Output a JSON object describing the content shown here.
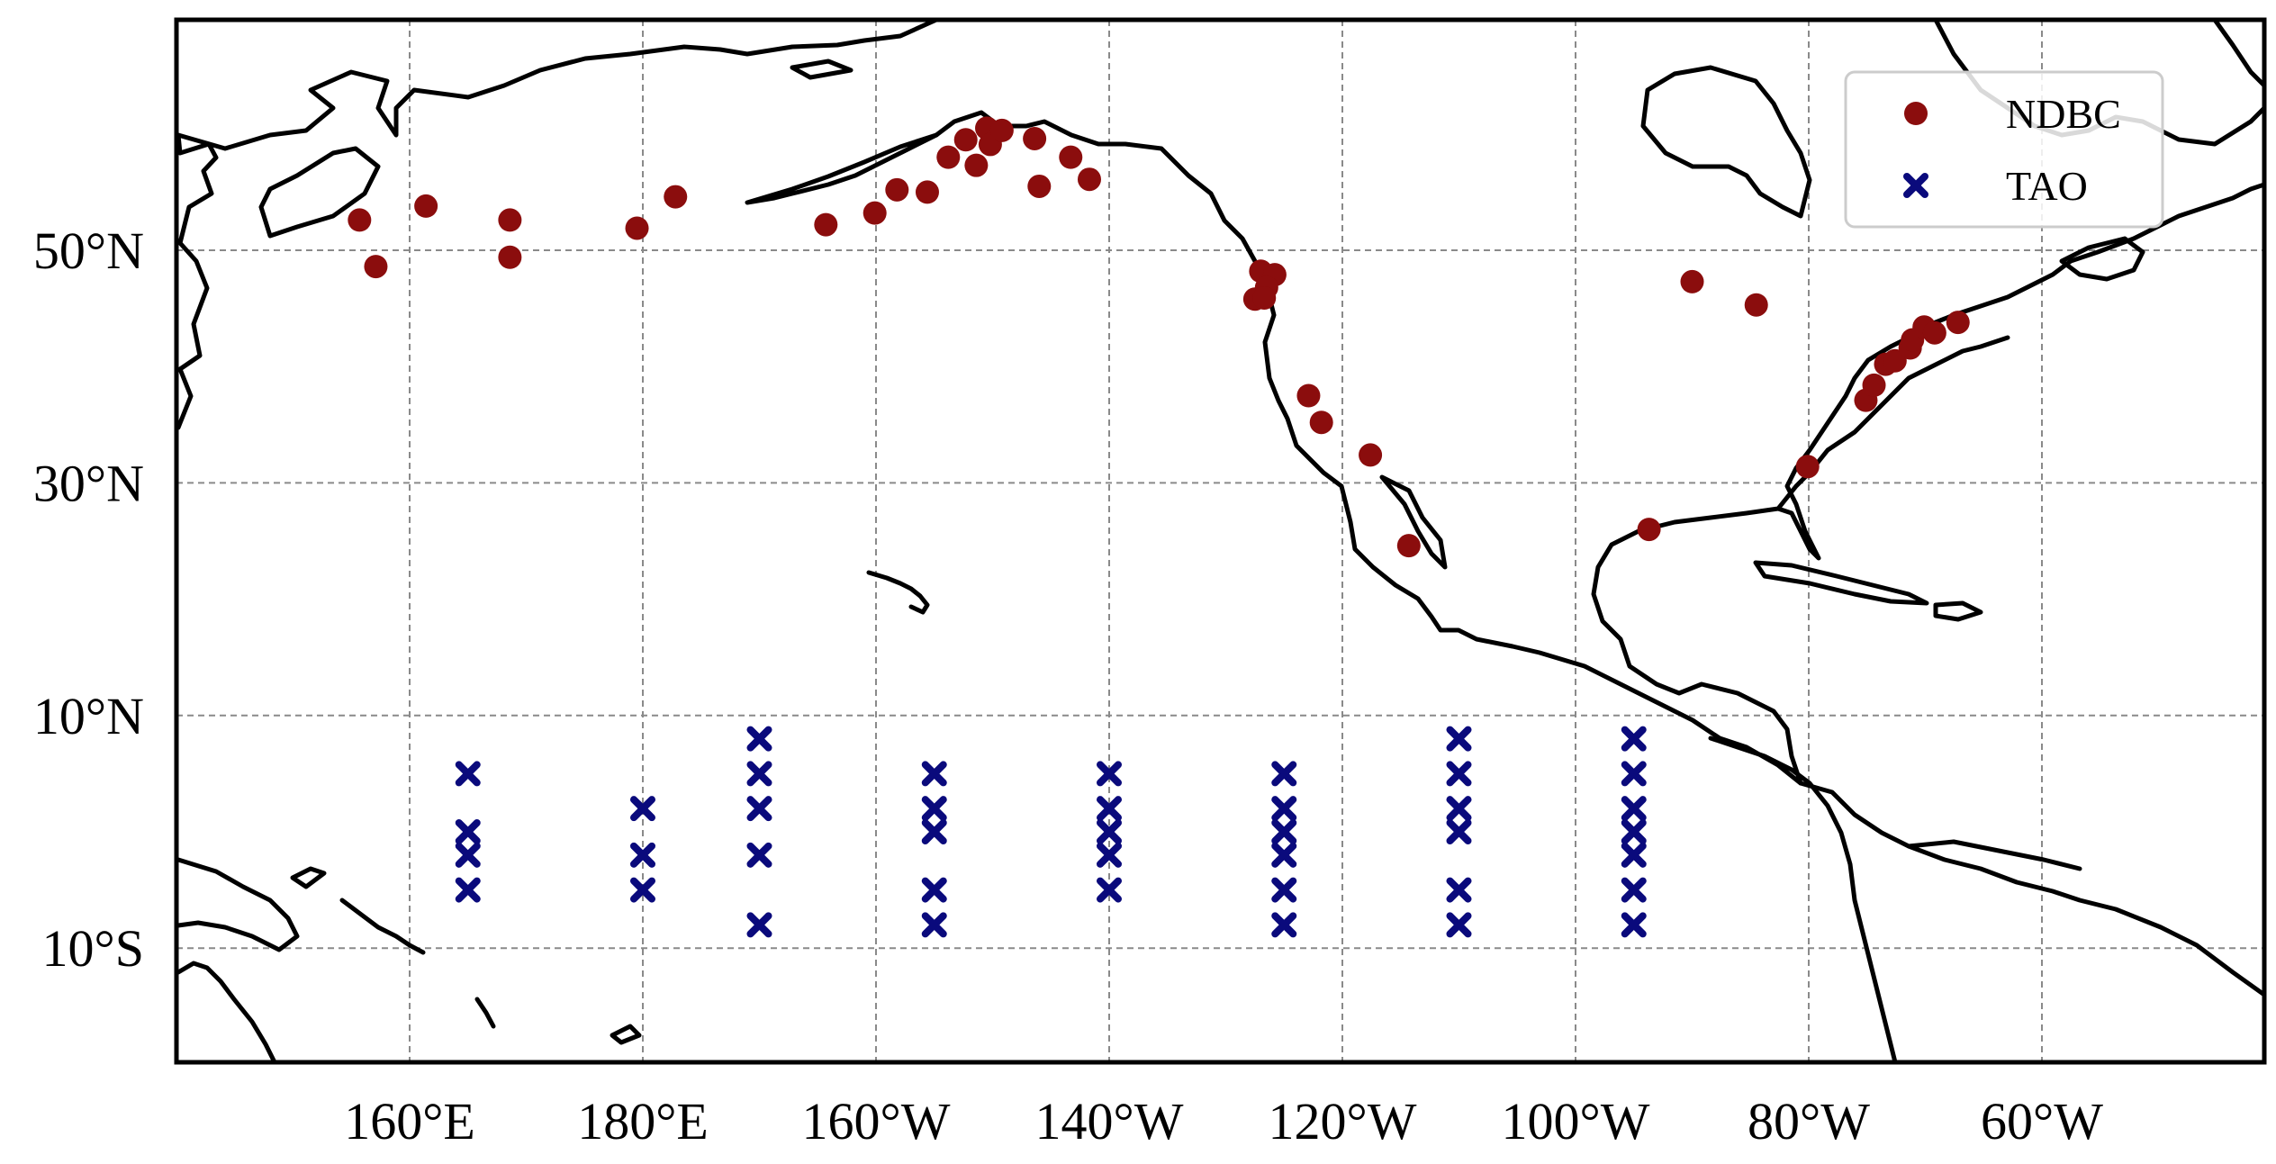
{
  "map": {
    "projection": "plate-carree",
    "lon_range": [
      140,
      300
    ],
    "lat_range": [
      -20,
      61
    ],
    "x_tick_labels": [
      {
        "lon": 160,
        "label": "160°E"
      },
      {
        "lon": 180,
        "label": "180°E"
      },
      {
        "lon": 200,
        "label": "160°W"
      },
      {
        "lon": 220,
        "label": "140°W"
      },
      {
        "lon": 240,
        "label": "120°W"
      },
      {
        "lon": 260,
        "label": "100°W"
      },
      {
        "lon": 280,
        "label": "80°W"
      },
      {
        "lon": 300,
        "label": "60°W"
      }
    ],
    "y_tick_labels": [
      {
        "lat": 50,
        "label": "50°N"
      },
      {
        "lat": 30,
        "label": "30°N"
      },
      {
        "lat": 10,
        "label": "10°N"
      },
      {
        "lat": -10,
        "label": "10°S"
      }
    ],
    "grid": true,
    "legend": {
      "position": "top-right",
      "items": [
        {
          "label": "NDBC",
          "marker": "circle",
          "color": "#8b0d0d"
        },
        {
          "label": "TAO",
          "marker": "x",
          "color": "#0a0a7c"
        }
      ]
    },
    "ndbc_stations": [
      [
        155.7,
        52.6
      ],
      [
        157.1,
        48.6
      ],
      [
        161.4,
        53.8
      ],
      [
        168.6,
        52.6
      ],
      [
        168.6,
        49.4
      ],
      [
        179.5,
        51.9
      ],
      [
        182.8,
        54.6
      ],
      [
        195.7,
        52.2
      ],
      [
        199.9,
        53.2
      ],
      [
        201.8,
        55.2
      ],
      [
        204.4,
        55.0
      ],
      [
        206.2,
        58.0
      ],
      [
        207.7,
        59.5
      ],
      [
        208.6,
        57.3
      ],
      [
        209.5,
        60.5
      ],
      [
        209.8,
        59.1
      ],
      [
        210.8,
        60.3
      ],
      [
        213.6,
        59.6
      ],
      [
        214.0,
        55.5
      ],
      [
        216.7,
        58.0
      ],
      [
        218.3,
        56.1
      ],
      [
        233.0,
        48.2
      ],
      [
        234.2,
        47.9
      ],
      [
        233.5,
        46.8
      ],
      [
        232.5,
        45.8
      ],
      [
        233.3,
        45.9
      ],
      [
        237.1,
        37.5
      ],
      [
        238.2,
        35.2
      ],
      [
        242.4,
        32.4
      ],
      [
        245.7,
        24.6
      ],
      [
        270.0,
        47.3
      ],
      [
        275.5,
        45.3
      ],
      [
        279.9,
        31.4
      ],
      [
        284.9,
        37.1
      ],
      [
        285.6,
        38.4
      ],
      [
        286.6,
        40.2
      ],
      [
        287.4,
        40.5
      ],
      [
        288.7,
        41.6
      ],
      [
        288.9,
        42.3
      ],
      [
        289.9,
        43.4
      ],
      [
        290.8,
        42.9
      ],
      [
        292.8,
        43.8
      ],
      [
        266.3,
        26.0
      ]
    ],
    "tao_stations": [
      [
        165,
        5
      ],
      [
        165,
        0
      ],
      [
        165,
        -2
      ],
      [
        165,
        -5
      ],
      [
        180,
        2
      ],
      [
        180,
        -2
      ],
      [
        180,
        -5
      ],
      [
        190,
        8
      ],
      [
        190,
        5
      ],
      [
        190,
        2
      ],
      [
        190,
        -2
      ],
      [
        190,
        -8
      ],
      [
        205,
        5
      ],
      [
        205,
        2
      ],
      [
        205,
        0
      ],
      [
        205,
        -5
      ],
      [
        205,
        -8
      ],
      [
        220,
        5
      ],
      [
        220,
        2
      ],
      [
        220,
        0
      ],
      [
        220,
        -2
      ],
      [
        220,
        -5
      ],
      [
        235,
        5
      ],
      [
        235,
        2
      ],
      [
        235,
        0
      ],
      [
        235,
        -2
      ],
      [
        235,
        -5
      ],
      [
        235,
        -8
      ],
      [
        250,
        8
      ],
      [
        250,
        5
      ],
      [
        250,
        2
      ],
      [
        250,
        0
      ],
      [
        250,
        -5
      ],
      [
        250,
        -8
      ],
      [
        265,
        8
      ],
      [
        265,
        5
      ],
      [
        265,
        2
      ],
      [
        265,
        0
      ],
      [
        265,
        -2
      ],
      [
        265,
        -5
      ],
      [
        265,
        -8
      ]
    ]
  }
}
